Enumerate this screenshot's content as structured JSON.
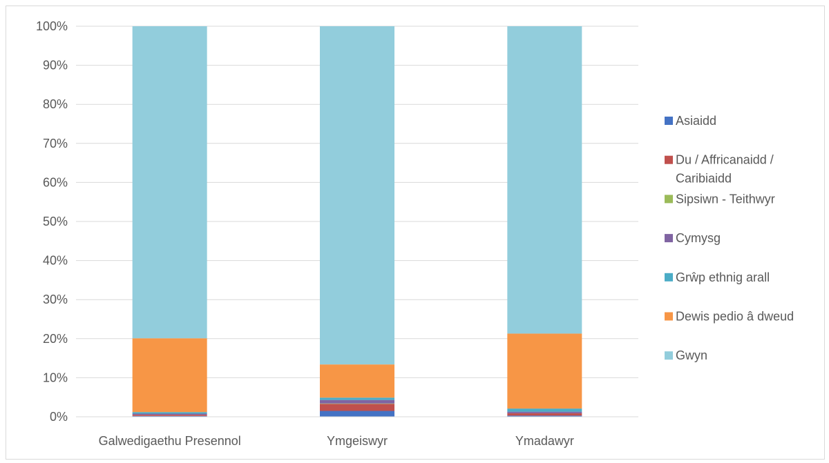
{
  "chart_data": {
    "type": "bar",
    "stacked": true,
    "percent": true,
    "title": "",
    "xlabel": "",
    "ylabel": "",
    "ylim": [
      0,
      100
    ],
    "yticks": [
      "0%",
      "10%",
      "20%",
      "30%",
      "40%",
      "50%",
      "60%",
      "70%",
      "80%",
      "90%",
      "100%"
    ],
    "categories": [
      "Galwedigaethu Presennol",
      "Ymgeiswyr",
      "Ymadawyr"
    ],
    "grid": true,
    "legend_position": "right",
    "series": [
      {
        "name": "Asiaidd",
        "color": "#4472c4",
        "values": [
          0.2,
          1.5,
          0.3
        ]
      },
      {
        "name": "Du / Affricanaidd / Caribiaidd",
        "color": "#c0504d",
        "values": [
          0.3,
          1.8,
          0.6
        ]
      },
      {
        "name": "Sipsiwn - Teithwyr",
        "color": "#9bbb59",
        "values": [
          0.0,
          0.1,
          0.0
        ]
      },
      {
        "name": "Cymysg",
        "color": "#8064a2",
        "values": [
          0.3,
          0.9,
          0.4
        ]
      },
      {
        "name": "Grŵp ethnig arall",
        "color": "#4bacc6",
        "values": [
          0.4,
          0.6,
          0.8
        ]
      },
      {
        "name": "Dewis pedio â dweud",
        "color": "#f79646",
        "values": [
          18.9,
          8.5,
          19.2
        ]
      },
      {
        "name": "Gwyn",
        "color": "#92cddc",
        "values": [
          79.9,
          86.6,
          78.7
        ]
      }
    ],
    "legend_lines": [
      [
        "Asiaidd"
      ],
      [
        "Du / Affricanaidd /",
        "Caribiaidd"
      ],
      [
        "Sipsiwn - Teithwyr"
      ],
      [
        "Cymysg"
      ],
      [
        "Grŵp ethnig arall"
      ],
      [
        "Dewis pedio â dweud"
      ],
      [
        "Gwyn"
      ]
    ]
  }
}
